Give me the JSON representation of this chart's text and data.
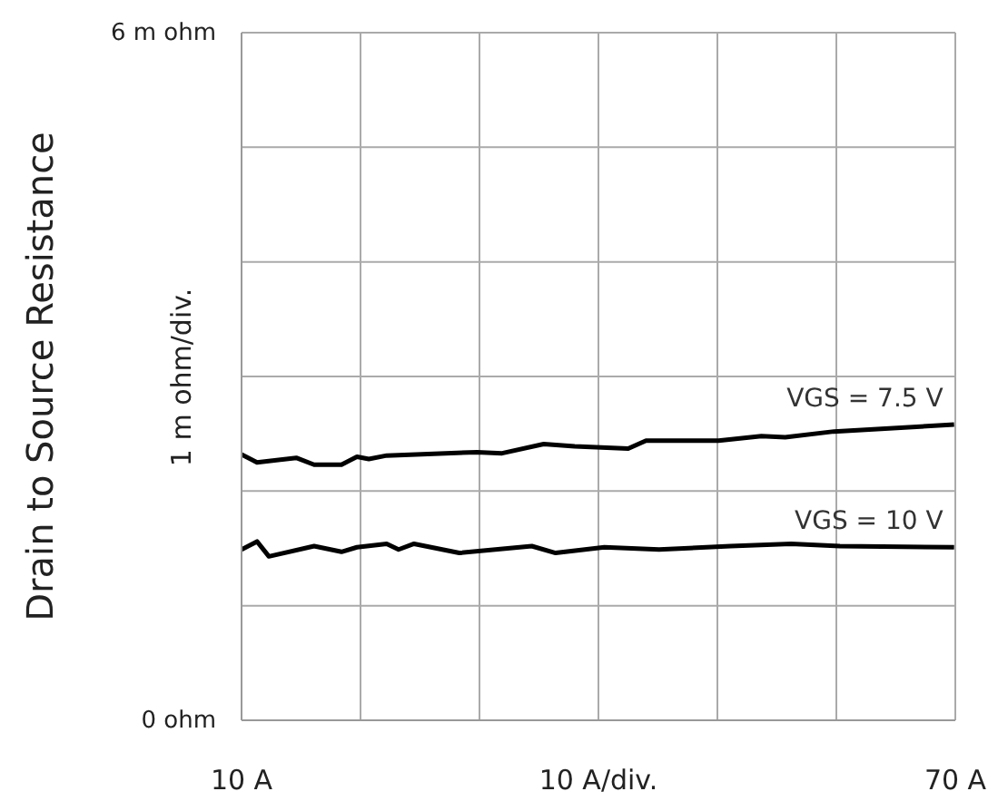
{
  "chart_data": {
    "type": "line",
    "ylabel": "Drain to Source Resistance",
    "xlabel": "10  A/div.",
    "annotations": [
      "1 m ohm/div."
    ],
    "xlim": [
      10,
      70
    ],
    "xticks": [
      {
        "value": 10,
        "label": "10  A"
      },
      {
        "value": 20,
        "label": null
      },
      {
        "value": 30,
        "label": null
      },
      {
        "value": 40,
        "label": null
      },
      {
        "value": 50,
        "label": null
      },
      {
        "value": 60,
        "label": null
      },
      {
        "value": 70,
        "label": "70  A"
      }
    ],
    "ylim": [
      0,
      6
    ],
    "yticks": [
      {
        "value": 0,
        "label": "0  ohm"
      },
      {
        "value": 1,
        "label": null
      },
      {
        "value": 2,
        "label": null
      },
      {
        "value": 3,
        "label": null
      },
      {
        "value": 4,
        "label": null
      },
      {
        "value": 5,
        "label": null
      },
      {
        "value": 6,
        "label": "6 m ohm"
      }
    ],
    "grid": true,
    "legend": false,
    "marker": "none",
    "line_style": "solid",
    "series": [
      {
        "name": "VGS = 7.5 V",
        "color": "#000000",
        "x": [
          10,
          11.3,
          14.6,
          16.1,
          18.4,
          19.7,
          20.7,
          22.2,
          29.8,
          31.9,
          35.4,
          38,
          42.5,
          44,
          50.1,
          53.7,
          55.7,
          59.8,
          69.9
        ],
        "values": [
          2.32,
          2.25,
          2.29,
          2.23,
          2.23,
          2.3,
          2.28,
          2.31,
          2.34,
          2.33,
          2.41,
          2.39,
          2.37,
          2.44,
          2.44,
          2.48,
          2.47,
          2.52,
          2.58
        ]
      },
      {
        "name": "VGS = 10 V",
        "color": "#000000",
        "x": [
          10,
          11.3,
          12.3,
          16.1,
          18.4,
          19.7,
          22.2,
          23.2,
          24.5,
          28.3,
          34.4,
          36.4,
          40.5,
          45.1,
          51.1,
          56.2,
          60.3,
          69.9
        ],
        "values": [
          1.49,
          1.56,
          1.43,
          1.52,
          1.47,
          1.51,
          1.54,
          1.49,
          1.54,
          1.46,
          1.52,
          1.46,
          1.51,
          1.49,
          1.52,
          1.54,
          1.52,
          1.51
        ]
      }
    ]
  }
}
